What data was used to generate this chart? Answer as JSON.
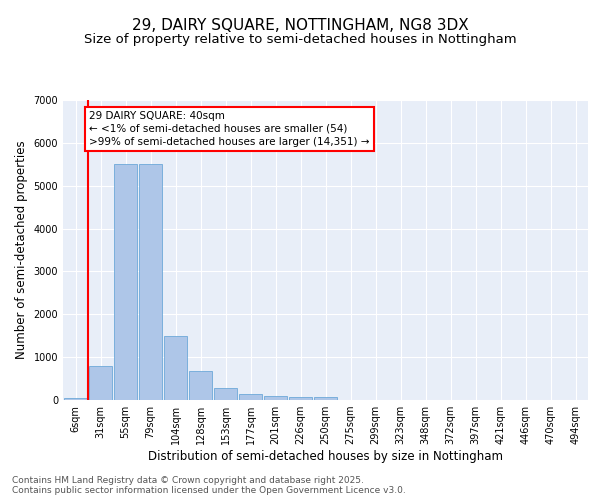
{
  "title1": "29, DAIRY SQUARE, NOTTINGHAM, NG8 3DX",
  "title2": "Size of property relative to semi-detached houses in Nottingham",
  "xlabel": "Distribution of semi-detached houses by size in Nottingham",
  "ylabel": "Number of semi-detached properties",
  "categories": [
    "6sqm",
    "31sqm",
    "55sqm",
    "79sqm",
    "104sqm",
    "128sqm",
    "153sqm",
    "177sqm",
    "201sqm",
    "226sqm",
    "250sqm",
    "275sqm",
    "299sqm",
    "323sqm",
    "348sqm",
    "372sqm",
    "397sqm",
    "421sqm",
    "446sqm",
    "470sqm",
    "494sqm"
  ],
  "values": [
    50,
    800,
    5500,
    5500,
    1500,
    670,
    280,
    150,
    100,
    70,
    70,
    0,
    0,
    0,
    0,
    0,
    0,
    0,
    0,
    0,
    0
  ],
  "bar_color": "#aec6e8",
  "bar_edge_color": "#5a9fd4",
  "vline_x": 0.5,
  "vline_color": "red",
  "annotation_text": "29 DAIRY SQUARE: 40sqm\n← <1% of semi-detached houses are smaller (54)\n>99% of semi-detached houses are larger (14,351) →",
  "annotation_box_color": "red",
  "ylim": [
    0,
    7000
  ],
  "yticks": [
    0,
    1000,
    2000,
    3000,
    4000,
    5000,
    6000,
    7000
  ],
  "background_color": "#e8eef8",
  "footer_text": "Contains HM Land Registry data © Crown copyright and database right 2025.\nContains public sector information licensed under the Open Government Licence v3.0.",
  "title_fontsize": 11,
  "subtitle_fontsize": 9.5,
  "label_fontsize": 8.5,
  "tick_fontsize": 7,
  "annotation_fontsize": 7.5,
  "footer_fontsize": 6.5
}
